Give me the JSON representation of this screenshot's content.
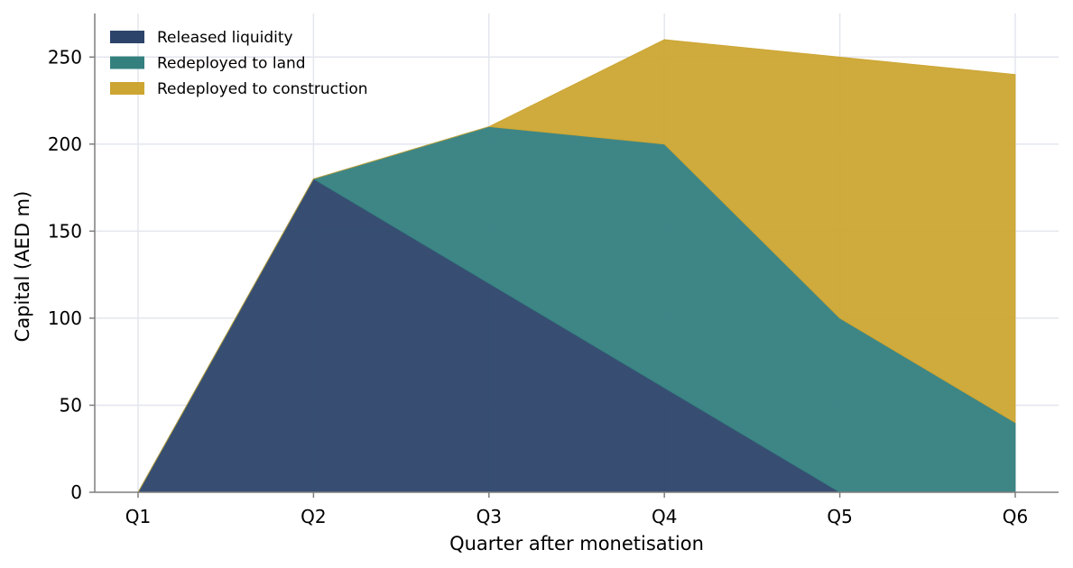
{
  "chart_data": {
    "type": "area",
    "stacked": true,
    "categories": [
      "Q1",
      "Q2",
      "Q3",
      "Q4",
      "Q5",
      "Q6"
    ],
    "series": [
      {
        "name": "Released liquidity",
        "values": [
          0,
          180,
          120,
          60,
          0,
          0
        ],
        "color": "#2c446a"
      },
      {
        "name": "Redeployed to land",
        "values": [
          0,
          0,
          90,
          140,
          100,
          40
        ],
        "color": "#34807f"
      },
      {
        "name": "Redeployed to construction",
        "values": [
          0,
          0,
          0,
          60,
          150,
          200
        ],
        "color": "#cca532"
      }
    ],
    "xlabel": "Quarter after monetisation",
    "ylabel": "Capital (AED m)",
    "ylim": [
      0,
      275
    ],
    "yticks": [
      0,
      50,
      100,
      150,
      200,
      250
    ],
    "grid": true,
    "legend_position": "top-left"
  }
}
